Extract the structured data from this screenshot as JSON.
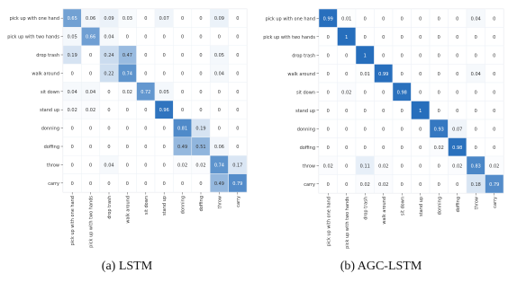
{
  "chart_data": [
    {
      "type": "heatmap",
      "caption": "(a) LSTM",
      "rows": [
        "pick up with one hand",
        "pick up with two hands",
        "drop trash",
        "walk around",
        "sit down",
        "stand up",
        "donning",
        "doffing",
        "throw",
        "carry"
      ],
      "cols": [
        "pick up with one hand",
        "pick up with two hands",
        "drop trash",
        "walk around",
        "sit down",
        "stand up",
        "donning",
        "doffing",
        "throw",
        "carry"
      ],
      "values": [
        [
          0.65,
          0.06,
          0.09,
          0.03,
          0,
          0.07,
          0,
          0,
          0.09,
          0
        ],
        [
          0.05,
          0.66,
          0.04,
          0,
          0,
          0,
          0,
          0,
          0,
          0
        ],
        [
          0.19,
          0,
          0.24,
          0.47,
          0,
          0,
          0,
          0,
          0.05,
          0
        ],
        [
          0,
          0,
          0.22,
          0.74,
          0,
          0,
          0,
          0,
          0.04,
          0
        ],
        [
          0.04,
          0.04,
          0,
          0.02,
          0.72,
          0.05,
          0,
          0,
          0,
          0
        ],
        [
          0.02,
          0.02,
          0,
          0,
          0,
          0.96,
          0,
          0,
          0,
          0
        ],
        [
          0,
          0,
          0,
          0,
          0,
          0,
          0.81,
          0.19,
          0,
          0
        ],
        [
          0,
          0,
          0,
          0,
          0,
          0,
          0.49,
          0.51,
          0.06,
          0
        ],
        [
          0,
          0,
          0.04,
          0,
          0,
          0,
          0.02,
          0.02,
          0.74,
          0.17
        ],
        [
          0,
          0,
          0,
          0,
          0,
          0,
          0,
          0,
          0.49,
          0.79
        ]
      ]
    },
    {
      "type": "heatmap",
      "caption": "(b) AGC-LSTM",
      "rows": [
        "pick up with one hand",
        "pick up with two hands",
        "drop trash",
        "walk around",
        "sit down",
        "stand up",
        "donning",
        "doffing",
        "throw",
        "carry"
      ],
      "cols": [
        "pick up with one hand",
        "pick up with two hands",
        "drop trash",
        "walk around",
        "sit down",
        "stand up",
        "donning",
        "doffing",
        "throw",
        "carry"
      ],
      "values": [
        [
          0.99,
          0.01,
          0,
          0,
          0,
          0,
          0,
          0,
          0.04,
          0
        ],
        [
          0,
          1,
          0,
          0,
          0,
          0,
          0,
          0,
          0,
          0
        ],
        [
          0,
          0,
          1,
          0,
          0,
          0,
          0,
          0,
          0,
          0
        ],
        [
          0,
          0,
          0.01,
          0.99,
          0,
          0,
          0,
          0,
          0.04,
          0
        ],
        [
          0,
          0.02,
          0,
          0,
          0.98,
          0,
          0,
          0,
          0,
          0
        ],
        [
          0,
          0,
          0,
          0,
          0,
          1,
          0,
          0,
          0,
          0
        ],
        [
          0,
          0,
          0,
          0,
          0,
          0,
          0.93,
          0.07,
          0,
          0
        ],
        [
          0,
          0,
          0,
          0,
          0,
          0,
          0.02,
          0.98,
          0,
          0
        ],
        [
          0.02,
          0,
          0.11,
          0.02,
          0,
          0,
          0,
          0.02,
          0.83,
          0.02
        ],
        [
          0,
          0,
          0.02,
          0.02,
          0,
          0,
          0,
          0,
          0.18,
          0.79
        ]
      ]
    }
  ]
}
